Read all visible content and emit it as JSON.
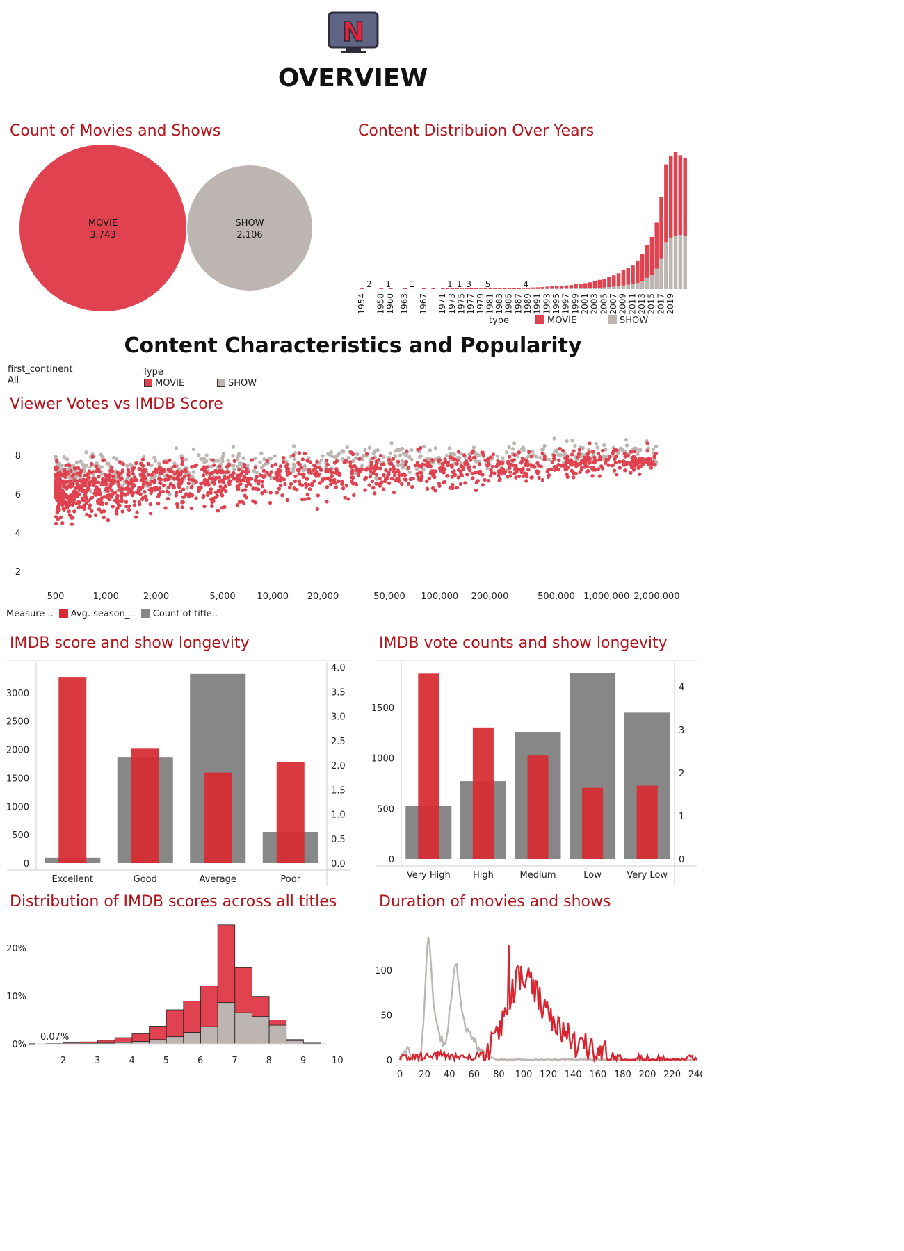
{
  "colors": {
    "movie": "#e0424f",
    "show": "#bdb5b1",
    "bar_red": "#d62b32",
    "bar_gray": "#878787",
    "title": "#b3121a"
  },
  "header": {
    "icon": "netflix-tv-icon",
    "logo_letter": "N",
    "title": "OVERVIEW"
  },
  "section2": {
    "title": "Content Characteristics and Popularity"
  },
  "filters": {
    "continent_label": "first_continent",
    "continent_value": "All",
    "type_label": "Type",
    "type_items": [
      "MOVIE",
      "SHOW"
    ]
  },
  "count_chart": {
    "title": "Count of Movies and Shows",
    "bubbles": [
      {
        "label": "MOVIE",
        "value_text": "3,743",
        "value": 3743
      },
      {
        "label": "SHOW",
        "value_text": "2,106",
        "value": 2106
      }
    ]
  },
  "years_chart": {
    "title": "Content Distribuion Over Years",
    "legend_title": "type",
    "legend_items": [
      "MOVIE",
      "SHOW"
    ],
    "tick_labels": [
      "1954",
      "1958",
      "1960",
      "1963",
      "1967",
      "1971",
      "1973",
      "1975",
      "1977",
      "1979",
      "1981",
      "1983",
      "1985",
      "1987",
      "1989",
      "1991",
      "1993",
      "1995",
      "1997",
      "1999",
      "2001",
      "2003",
      "2005",
      "2007",
      "2009",
      "2011",
      "2013",
      "2015",
      "2017",
      "2019"
    ],
    "low_labels": [
      {
        "year": 1954,
        "text": "2"
      },
      {
        "year": 1958,
        "text": "1"
      },
      {
        "year": 1963,
        "text": "1"
      },
      {
        "year": 1971,
        "text": "1"
      },
      {
        "year": 1973,
        "text": "1"
      },
      {
        "year": 1975,
        "text": "3"
      },
      {
        "year": 1979,
        "text": "5"
      },
      {
        "year": 1987,
        "text": "4"
      }
    ]
  },
  "scatter": {
    "title": "Viewer Votes vs IMDB Score",
    "x_ticks": [
      {
        "v": 500,
        "t": "500"
      },
      {
        "v": 1000,
        "t": "1,000"
      },
      {
        "v": 2000,
        "t": "2,000"
      },
      {
        "v": 5000,
        "t": "5,000"
      },
      {
        "v": 10000,
        "t": "10,000"
      },
      {
        "v": 20000,
        "t": "20,000"
      },
      {
        "v": 50000,
        "t": "50,000"
      },
      {
        "v": 100000,
        "t": "100,000"
      },
      {
        "v": 200000,
        "t": "200,000"
      },
      {
        "v": 500000,
        "t": "500,000"
      },
      {
        "v": 1000000,
        "t": "1,000,000"
      },
      {
        "v": 2000000,
        "t": "2,000,000"
      }
    ],
    "y_ticks": [
      2,
      4,
      6,
      8
    ]
  },
  "measure_legend": {
    "label": "Measure ..",
    "items": [
      "Avg. season_..",
      "Count of title.."
    ]
  },
  "longevity_score": {
    "title": "IMDB score and show longevity",
    "left_ticks": [
      "0",
      "500",
      "1000",
      "1500",
      "2000",
      "2500",
      "3000"
    ],
    "right_ticks": [
      "0.0",
      "0.5",
      "1.0",
      "1.5",
      "2.0",
      "2.5",
      "3.0",
      "3.5",
      "4.0"
    ]
  },
  "longevity_votes": {
    "title": "IMDB vote counts and show longevity",
    "left_ticks": [
      "0",
      "500",
      "1000",
      "1500"
    ],
    "right_ticks": [
      "0",
      "1",
      "2",
      "3",
      "4"
    ]
  },
  "histogram": {
    "title": "Distribution of IMDB scores across all titles",
    "y_ticks": [
      "0%",
      "10%",
      "20%"
    ],
    "x_ticks": [
      "2",
      "3",
      "4",
      "5",
      "6",
      "7",
      "8",
      "9",
      "10"
    ],
    "annotation": "0.07%"
  },
  "duration": {
    "title": "Duration of movies and shows",
    "y_ticks": [
      "0",
      "50",
      "100"
    ],
    "x_ticks": [
      "0",
      "20",
      "40",
      "60",
      "80",
      "100",
      "120",
      "140",
      "160",
      "180",
      "200",
      "220",
      "240"
    ]
  },
  "chart_data": [
    {
      "type": "bar",
      "name": "content_by_year",
      "stacked": true,
      "x": [
        1954,
        1955,
        1956,
        1957,
        1958,
        1959,
        1960,
        1961,
        1962,
        1963,
        1964,
        1965,
        1966,
        1967,
        1968,
        1969,
        1970,
        1971,
        1972,
        1973,
        1974,
        1975,
        1976,
        1977,
        1978,
        1979,
        1980,
        1981,
        1982,
        1983,
        1984,
        1985,
        1986,
        1987,
        1988,
        1989,
        1990,
        1991,
        1992,
        1993,
        1994,
        1995,
        1996,
        1997,
        1998,
        1999,
        2000,
        2001,
        2002,
        2003,
        2004,
        2005,
        2006,
        2007,
        2008,
        2009,
        2010,
        2011,
        2012,
        2013,
        2014,
        2015,
        2016,
        2017,
        2018,
        2019,
        2020,
        2021,
        2022
      ],
      "series": [
        {
          "name": "MOVIE",
          "values": [
            2,
            0,
            0,
            0,
            1,
            0,
            1,
            0,
            0,
            1,
            0,
            0,
            0,
            1,
            0,
            1,
            0,
            1,
            1,
            1,
            1,
            2,
            3,
            2,
            3,
            4,
            3,
            4,
            4,
            4,
            4,
            5,
            4,
            4,
            6,
            6,
            7,
            8,
            9,
            10,
            12,
            12,
            13,
            15,
            17,
            22,
            22,
            25,
            28,
            32,
            38,
            42,
            48,
            55,
            62,
            75,
            80,
            90,
            110,
            130,
            160,
            185,
            225,
            300,
            380,
            400,
            410,
            390,
            380
          ]
        },
        {
          "name": "SHOW",
          "values": [
            0,
            0,
            0,
            0,
            0,
            0,
            0,
            0,
            0,
            0,
            0,
            0,
            0,
            0,
            0,
            0,
            0,
            0,
            0,
            0,
            0,
            1,
            0,
            0,
            0,
            1,
            0,
            0,
            0,
            0,
            0,
            0,
            0,
            0,
            1,
            1,
            1,
            1,
            1,
            2,
            2,
            2,
            2,
            3,
            3,
            3,
            4,
            4,
            5,
            6,
            7,
            8,
            10,
            12,
            15,
            18,
            22,
            25,
            30,
            40,
            55,
            70,
            100,
            150,
            230,
            250,
            260,
            265,
            262
          ]
        }
      ]
    },
    {
      "type": "bar",
      "name": "imdb_score_longevity",
      "categories": [
        "Excellent",
        "Good",
        "Average",
        "Poor"
      ],
      "series": [
        {
          "name": "Count of title..",
          "values": [
            100,
            1870,
            3330,
            550
          ]
        },
        {
          "name": "Avg. season_..",
          "values": [
            3.8,
            2.35,
            1.85,
            2.07
          ]
        }
      ],
      "ylim_left": [
        0,
        3450
      ],
      "ylim_right": [
        0,
        4.0
      ]
    },
    {
      "type": "bar",
      "name": "imdb_votes_longevity",
      "categories": [
        "Very High",
        "High",
        "Medium",
        "Low",
        "Very Low"
      ],
      "series": [
        {
          "name": "Count of title..",
          "values": [
            530,
            770,
            1260,
            1840,
            1450
          ]
        },
        {
          "name": "Avg. season_..",
          "values": [
            4.3,
            3.05,
            2.4,
            1.65,
            1.7
          ]
        }
      ],
      "ylim_left": [
        0,
        1900
      ],
      "ylim_right": [
        0,
        4.45
      ]
    },
    {
      "type": "bar",
      "name": "imdb_score_distribution",
      "stacked": true,
      "x": [
        1.5,
        2,
        2.5,
        3,
        3.5,
        4,
        4.5,
        5,
        5.5,
        6,
        6.5,
        7,
        7.5,
        8,
        8.5,
        9,
        9.5
      ],
      "series": [
        {
          "name": "MOVIE",
          "values": [
            0.02,
            0.05,
            0.15,
            0.3,
            0.6,
            1.0,
            1.6,
            2.8,
            5.6,
            6.5,
            8.5,
            16.2,
            9.4,
            4.2,
            1.1,
            0.2,
            0.03
          ]
        },
        {
          "name": "SHOW",
          "values": [
            0.0,
            0.02,
            0.05,
            0.1,
            0.15,
            0.3,
            0.5,
            0.9,
            1.5,
            2.4,
            3.6,
            8.6,
            6.5,
            5.7,
            3.9,
            0.7,
            0.12
          ]
        }
      ],
      "ylim": [
        0,
        25.5
      ]
    }
  ]
}
